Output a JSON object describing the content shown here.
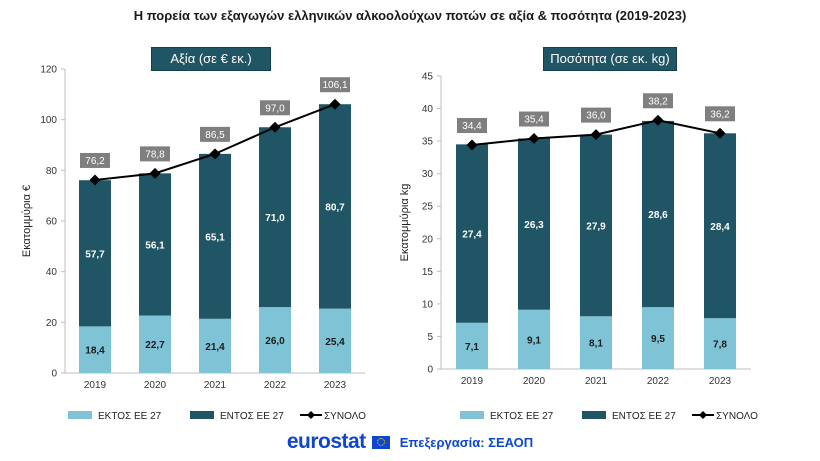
{
  "title": "Η πορεία των εξαγωγών ελληνικών αλκοολούχων ποτών σε αξία & ποσότητα (2019-2023)",
  "colors": {
    "outside": "#7fc4d6",
    "inside": "#1f5565",
    "total": "#000000",
    "label_bg": "#7f7f7f"
  },
  "legend": {
    "outside": "ΕΚΤΟΣ ΕΕ 27",
    "inside": "ΕΝΤΟΣ ΕΕ 27",
    "total": "ΣΥΝΟΛΟ"
  },
  "footer": {
    "logo": "eurostat",
    "processing": "Επεξεργασία: ΣΕΑΟΠ"
  },
  "chart_data": [
    {
      "type": "bar",
      "title": "Αξία (σε € εκ.)",
      "ylabel": "Εκατομμύρια €",
      "categories": [
        "2019",
        "2020",
        "2021",
        "2022",
        "2023"
      ],
      "ylim": [
        0,
        120
      ],
      "yticks": [
        0,
        20,
        40,
        60,
        80,
        100,
        120
      ],
      "series": [
        {
          "name": "ΕΚΤΟΣ ΕΕ 27",
          "values": [
            18.4,
            22.7,
            21.4,
            26.0,
            25.4
          ],
          "labels": [
            "18,4",
            "22,7",
            "21,4",
            "26,0",
            "25,4"
          ]
        },
        {
          "name": "ΕΝΤΟΣ ΕΕ 27",
          "values": [
            57.7,
            56.1,
            65.1,
            71.0,
            80.7
          ],
          "labels": [
            "57,7",
            "56,1",
            "65,1",
            "71,0",
            "80,7"
          ]
        },
        {
          "name": "ΣΥΝΟΛΟ",
          "values": [
            76.2,
            78.8,
            86.5,
            97.0,
            106.1
          ],
          "labels": [
            "76,2",
            "78,8",
            "86,5",
            "97,0",
            "106,1"
          ]
        }
      ]
    },
    {
      "type": "bar",
      "title": "Ποσότητα (σε εκ. kg)",
      "ylabel": "Εκατομμύρια kg",
      "categories": [
        "2019",
        "2020",
        "2021",
        "2022",
        "2023"
      ],
      "ylim": [
        0,
        45
      ],
      "yticks": [
        0,
        5,
        10,
        15,
        20,
        25,
        30,
        35,
        40,
        45
      ],
      "series": [
        {
          "name": "ΕΚΤΟΣ ΕΕ 27",
          "values": [
            7.1,
            9.1,
            8.1,
            9.5,
            7.8
          ],
          "labels": [
            "7,1",
            "9,1",
            "8,1",
            "9,5",
            "7,8"
          ]
        },
        {
          "name": "ΕΝΤΟΣ ΕΕ 27",
          "values": [
            27.4,
            26.3,
            27.9,
            28.6,
            28.4
          ],
          "labels": [
            "27,4",
            "26,3",
            "27,9",
            "28,6",
            "28,4"
          ]
        },
        {
          "name": "ΣΥΝΟΛΟ",
          "values": [
            34.4,
            35.4,
            36.0,
            38.2,
            36.2
          ],
          "labels": [
            "34,4",
            "35,4",
            "36,0",
            "38,2",
            "36,2"
          ]
        }
      ]
    }
  ]
}
